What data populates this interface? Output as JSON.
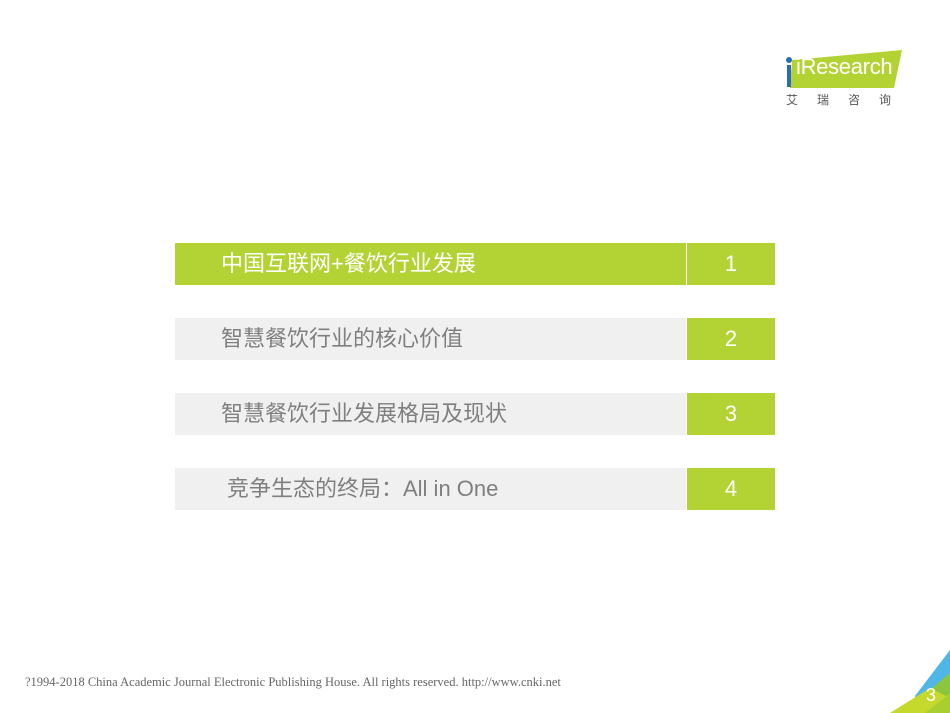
{
  "logo": {
    "brand": "iResearch",
    "brand_cn": "艾瑞咨询",
    "colors": {
      "green": "#b3d334",
      "blue": "#2a6db5"
    }
  },
  "agenda": {
    "items": [
      {
        "label": "中国互联网+餐饮行业发展",
        "number": "1",
        "active": true
      },
      {
        "label": "智慧餐饮行业的核心价值",
        "number": "2",
        "active": false
      },
      {
        "label": "智慧餐饮行业发展格局及现状",
        "number": "3",
        "active": false
      },
      {
        "label": "竞争生态的终局：All in One",
        "number": "4",
        "active": false
      }
    ],
    "colors": {
      "accent": "#b3d334",
      "inactive_bg": "#f0f0f0",
      "inactive_text": "#7f7f7f"
    }
  },
  "footer": {
    "copyright": "?1994-2018 China Academic Journal Electronic Publishing House. All rights reserved.    http://www.cnki.net"
  },
  "page_number": "3"
}
